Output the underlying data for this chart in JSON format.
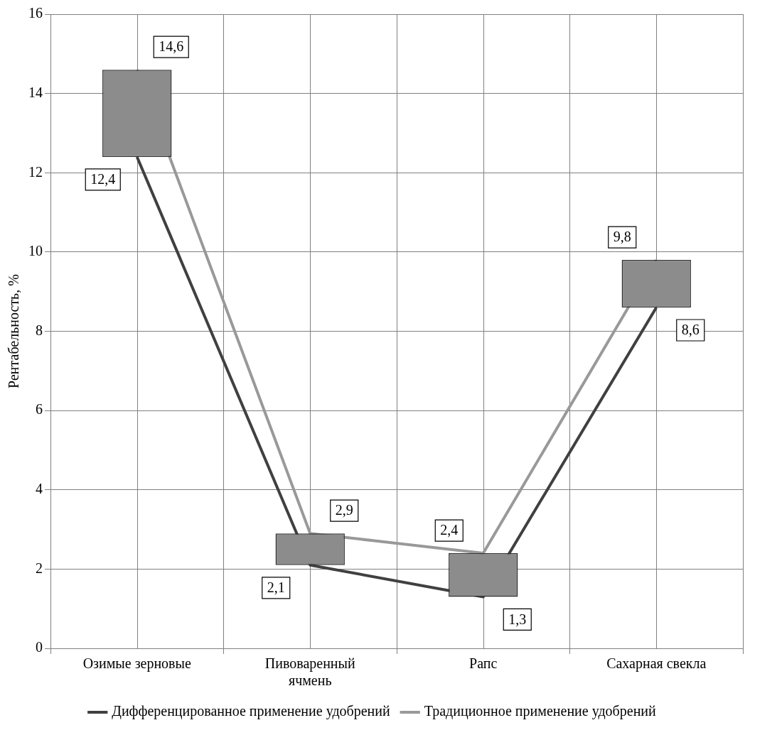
{
  "chart_data": {
    "type": "line",
    "ylabel": "Рентабельность, %",
    "categories": [
      "Озимые зерновые",
      "Пивоваренный ячмень",
      "Рапс",
      "Сахарная свекла"
    ],
    "series": [
      {
        "name": "Дифференцированное применение удобрений",
        "color": "#404040",
        "values": [
          12.4,
          2.1,
          1.3,
          8.6
        ],
        "value_labels": [
          "12,4",
          "2,1",
          "1,3",
          "8,6"
        ]
      },
      {
        "name": "Традиционное применение удобрений",
        "color": "#999999",
        "values": [
          14.6,
          2.9,
          2.4,
          9.8
        ],
        "value_labels": [
          "14,6",
          "2,9",
          "2,4",
          "9,8"
        ]
      },
      {
        "type": "bar",
        "color": "#8c8c8c",
        "base": [
          12.4,
          2.1,
          1.3,
          8.6
        ],
        "values": [
          2.2,
          0.8,
          1.1,
          1.2
        ]
      }
    ],
    "ylim": [
      0,
      16
    ],
    "yticks": [
      0,
      2,
      4,
      6,
      8,
      10,
      12,
      14,
      16
    ],
    "grid": true,
    "legend": "bottom",
    "marker": "none",
    "line_style": "solid"
  }
}
